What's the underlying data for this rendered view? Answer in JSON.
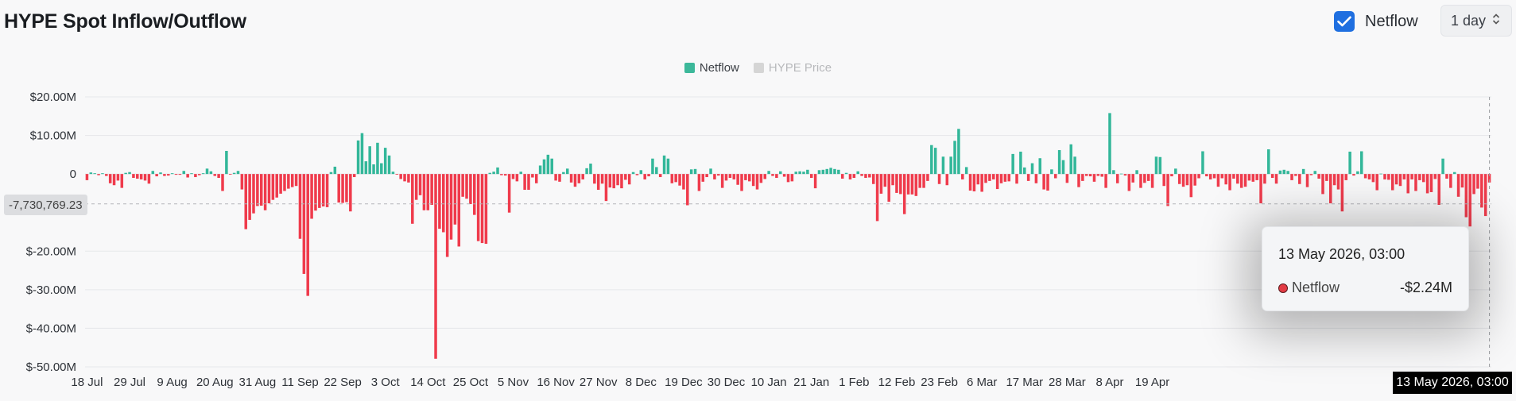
{
  "header": {
    "title": "HYPE Spot Inflow/Outflow",
    "netflow_toggle_label": "Netflow",
    "period_value": "1 day"
  },
  "legend": [
    {
      "label": "Netflow",
      "color": "#3cb89a",
      "active": true
    },
    {
      "label": "HYPE Price",
      "color": "#d5d5d5",
      "active": false
    }
  ],
  "tooltip": {
    "date": "13 May 2026, 03:00",
    "series": "Netflow",
    "value": "-$2.24M"
  },
  "crosshair": {
    "y_label": "-7,730,769.23",
    "x_label": "13 May 2026, 03:00"
  },
  "colors": {
    "positive": "#33b79a",
    "negative": "#ef3b4c",
    "grid": "#e6e7ea"
  },
  "chart_data": {
    "type": "bar",
    "title": "HYPE Spot Inflow/Outflow",
    "xlabel": "",
    "ylabel": "",
    "ylim": [
      -50,
      20
    ],
    "y_unit": "$M",
    "y_ticks": [
      20,
      10,
      0,
      -20,
      -30,
      -40,
      -50
    ],
    "y_tick_labels": [
      "$20.00M",
      "$10.00M",
      "0",
      "$-20.00M",
      "$-30.00M",
      "$-40.00M",
      "$-50.00M"
    ],
    "x_tick_labels": [
      "18 Jul",
      "29 Jul",
      "9 Aug",
      "20 Aug",
      "31 Aug",
      "11 Sep",
      "22 Sep",
      "3 Oct",
      "14 Oct",
      "25 Oct",
      "5 Nov",
      "16 Nov",
      "27 Nov",
      "8 Dec",
      "19 Dec",
      "30 Dec",
      "10 Jan",
      "21 Jan",
      "1 Feb",
      "12 Feb",
      "23 Feb",
      "6 Mar",
      "17 Mar",
      "28 Mar",
      "8 Apr",
      "19 Apr"
    ],
    "grid": true,
    "legend_position": "top-center",
    "series": [
      {
        "name": "Netflow",
        "start_date": "18 Jul 2025",
        "end_date": "13 May 2026",
        "values": [
          -1.6,
          0.4,
          0.2,
          -0.3,
          0.2,
          -0.5,
          -2.4,
          -2.9,
          -1.7,
          -3.6,
          0.3,
          0.5,
          -1.0,
          -1.2,
          -1.4,
          -1.7,
          -2.5,
          0.8,
          -0.6,
          0.4,
          -0.5,
          -0.4,
          0.2,
          -0.2,
          -0.2,
          0.8,
          -0.9,
          0.2,
          -0.8,
          -0.3,
          0.2,
          1.4,
          0.7,
          -0.5,
          -1.0,
          -4.4,
          6.0,
          -0.1,
          0.3,
          0.8,
          -4.0,
          -14.3,
          -11.9,
          -10.2,
          -8.3,
          -8.2,
          -9.4,
          -7.6,
          -6.7,
          -6.1,
          -5.1,
          -4.4,
          -3.8,
          -3.4,
          -3.1,
          -16.8,
          -25.9,
          -31.6,
          -11.6,
          -9.5,
          -8.8,
          -8.4,
          -8.6,
          0.5,
          1.9,
          -7.4,
          -7.5,
          -7.3,
          -9.7,
          -0.8,
          8.7,
          10.6,
          3.3,
          7.2,
          2.5,
          8.1,
          2.8,
          6.8,
          4.8,
          0.6,
          -0.1,
          -1.3,
          -1.9,
          -2.2,
          -12.9,
          -6.7,
          -5.5,
          -9.4,
          -9.4,
          -8.0,
          -47.9,
          -14.2,
          -15.1,
          -21.5,
          -17.0,
          -13.1,
          -18.8,
          -5.9,
          -6.4,
          -7.8,
          -10.6,
          -17.4,
          -17.9,
          -18.1,
          0.3,
          0.6,
          1.7,
          -0.3,
          -0.4,
          -10.0,
          -1.3,
          -1.9,
          0.6,
          -4.1,
          -4.1,
          -0.9,
          -2.4,
          2.2,
          3.8,
          5.0,
          4.0,
          -1.7,
          -2.0,
          0.5,
          1.4,
          -2.2,
          -3.3,
          -2.4,
          -1.4,
          1.5,
          2.7,
          -2.5,
          -4.1,
          -2.5,
          -7.0,
          -3.5,
          -3.7,
          -2.9,
          -3.7,
          -1.5,
          -2.7,
          0.5,
          -0.3,
          1.0,
          -1.4,
          -0.6,
          4.0,
          1.8,
          -0.8,
          4.8,
          4.0,
          -2.4,
          -2.1,
          -3.0,
          -4.0,
          -8.1,
          1.2,
          1.3,
          -4.4,
          -2.0,
          -0.8,
          1.4,
          -1.4,
          -0.4,
          -3.6,
          -1.7,
          -1.0,
          -1.4,
          -2.8,
          -4.4,
          -1.6,
          -1.9,
          -3.1,
          -4.0,
          -2.3,
          -1.3,
          0.8,
          -0.5,
          -1.0,
          0.7,
          -0.7,
          -2.1,
          -1.9,
          0.6,
          0.7,
          0.6,
          1.1,
          -1.0,
          -3.7,
          1.0,
          1.1,
          1.3,
          1.6,
          1.3,
          1.1,
          -1.2,
          0.3,
          -1.4,
          -1.0,
          0.7,
          -0.5,
          -1.0,
          -0.9,
          -2.6,
          -12.2,
          -5.1,
          -3.3,
          -7.2,
          -2.9,
          -4.9,
          -5.2,
          -10.4,
          -5.3,
          -5.3,
          -5.7,
          -3.6,
          -3.6,
          -1.8,
          7.5,
          6.8,
          -2.6,
          4.5,
          -2.9,
          4.5,
          8.6,
          11.7,
          -1.4,
          1.8,
          -4.3,
          -4.5,
          -2.7,
          -4.6,
          -2.3,
          -1.8,
          -1.4,
          -3.9,
          -2.4,
          -2.0,
          -1.9,
          5.2,
          -2.5,
          5.8,
          1.7,
          -1.8,
          2.8,
          -2.4,
          4.1,
          -4.0,
          -4.3,
          1.2,
          -1.1,
          6.2,
          3.6,
          -2.3,
          7.7,
          4.5,
          -3.4,
          -1.8,
          -0.5,
          -0.6,
          -2.0,
          -0.5,
          -0.7,
          -3.6,
          15.8,
          1.0,
          -2.4,
          0.1,
          -0.4,
          -4.4,
          -2.2,
          1.0,
          -3.6,
          -2.3,
          -1.8,
          -3.6,
          4.5,
          4.4,
          -3.1,
          -8.3,
          -0.6,
          1.4,
          -2.6,
          -3.3,
          -2.9,
          -6.0,
          -3.0,
          -1.1,
          5.9,
          -0.6,
          -1.4,
          -1.1,
          -3.3,
          -1.1,
          -2.7,
          -4.2,
          -1.2,
          -2.5,
          -3.6,
          -3.3,
          -1.7,
          -2.0,
          -1.6,
          -7.6,
          -2.5,
          6.4,
          -1.0,
          -2.5,
          0.9,
          1.1,
          0.8,
          -1.6,
          -0.5,
          -2.6,
          1.3,
          -3.4,
          -0.3,
          0.8,
          -1.2,
          -5.2,
          -1.8,
          -7.6,
          -2.9,
          -4.0,
          -9.7,
          -1.6,
          5.8,
          -0.4,
          0.7,
          5.9,
          -1.1,
          -1.4,
          -2.1,
          -4.2,
          0.1,
          -1.4,
          -1.5,
          -4.2,
          -2.7,
          -3.1,
          -1.4,
          -5.0,
          -1.4,
          -4.4,
          -1.6,
          -2.1,
          -5.0,
          -4.7,
          -1.3,
          -8.0,
          4.0,
          -1.2,
          -3.6,
          0.5,
          -5.9,
          -3.5,
          -11.2,
          -13.6,
          -5.2,
          -3.8,
          -8.7,
          -10.9,
          -2.2
        ]
      }
    ]
  }
}
